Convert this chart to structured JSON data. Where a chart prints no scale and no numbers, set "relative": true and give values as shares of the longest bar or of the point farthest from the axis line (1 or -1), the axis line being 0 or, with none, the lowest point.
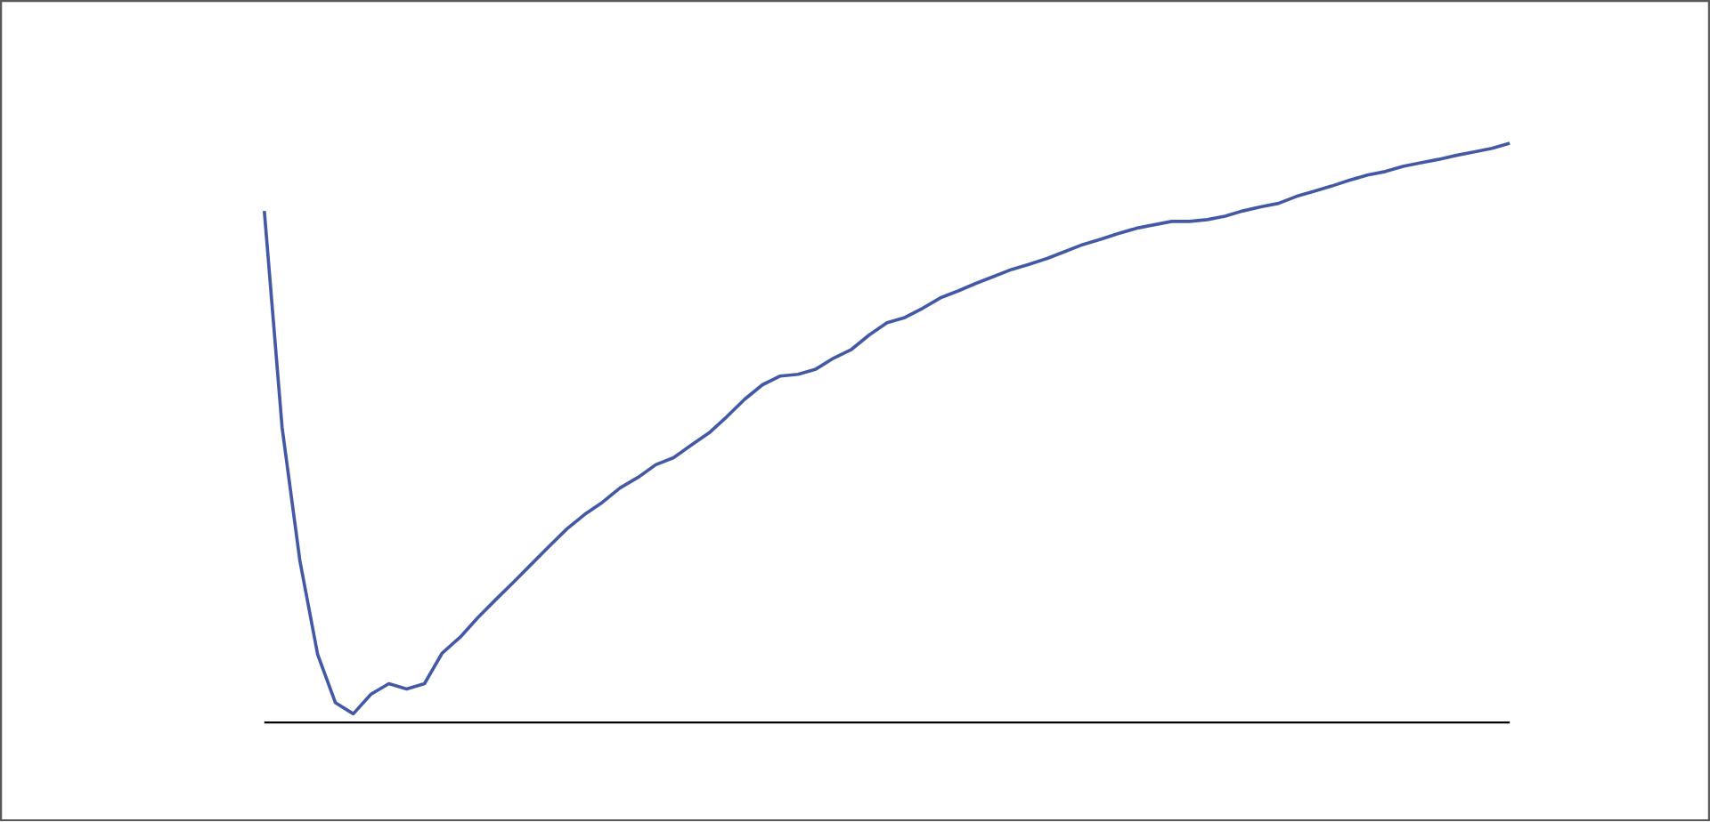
{
  "chart_data": {
    "type": "line",
    "relative": true,
    "color": "#4459a6",
    "categories": [
      null,
      null,
      null,
      null,
      null,
      null,
      null,
      null,
      null,
      null,
      null,
      null,
      null,
      null,
      null,
      null,
      null,
      null,
      null,
      null,
      null,
      null,
      null,
      null,
      null,
      null,
      null,
      null,
      null,
      null,
      null,
      null,
      null,
      null,
      null,
      null,
      null,
      null,
      null,
      null,
      null,
      null,
      null,
      null,
      null,
      null,
      null,
      null,
      null,
      null,
      null,
      null,
      null,
      null,
      null,
      null,
      null,
      null,
      null,
      null,
      null,
      null,
      null,
      null,
      null,
      null,
      null,
      null,
      null,
      null,
      null
    ],
    "values": [
      0.883,
      0.509,
      0.279,
      0.117,
      0.034,
      0.015,
      0.049,
      0.067,
      0.058,
      0.067,
      0.12,
      0.147,
      0.181,
      0.212,
      0.242,
      0.273,
      0.304,
      0.334,
      0.359,
      0.38,
      0.405,
      0.423,
      0.445,
      0.457,
      0.479,
      0.5,
      0.528,
      0.558,
      0.583,
      0.598,
      0.601,
      0.61,
      0.629,
      0.644,
      0.669,
      0.69,
      0.699,
      0.715,
      0.733,
      0.745,
      0.758,
      0.77,
      0.782,
      0.791,
      0.801,
      0.813,
      0.825,
      0.834,
      0.844,
      0.853,
      0.859,
      0.865,
      0.865,
      0.868,
      0.874,
      0.883,
      0.89,
      0.896,
      0.908,
      0.917,
      0.926,
      0.936,
      0.945,
      0.951,
      0.96,
      0.966,
      0.972,
      0.979,
      0.985,
      0.991,
      1
    ]
  }
}
